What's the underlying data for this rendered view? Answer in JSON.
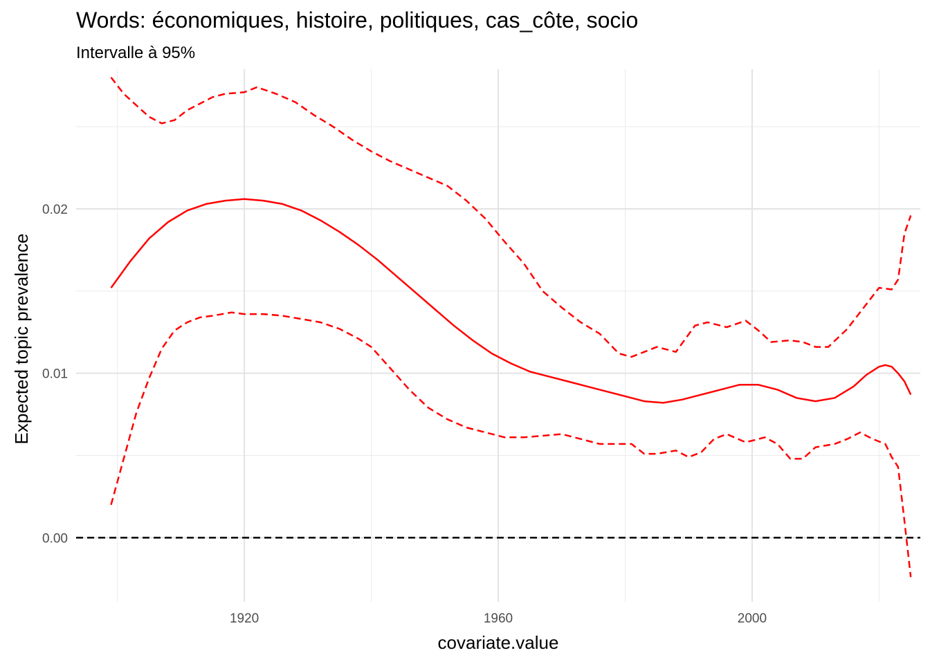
{
  "chart_data": {
    "type": "line",
    "title": "Words: économiques, histoire, politiques, cas_côte, socio",
    "subtitle": "Intervalle à 95%",
    "xlabel": "covariate.value",
    "ylabel": "Expected topic prevalence",
    "x_ticks": [
      "1920",
      "1960",
      "2000"
    ],
    "y_ticks": [
      "0.00",
      "0.01",
      "0.02"
    ],
    "xlim": [
      1893.5,
      2026.5
    ],
    "ylim": [
      -0.0039,
      0.0285
    ],
    "grid": true,
    "legend": "none",
    "reference_line": {
      "y": 0,
      "style": "dashed",
      "color": "#000000"
    },
    "series": [
      {
        "style": "solid",
        "color": "#ff0000",
        "points": [
          [
            1899,
            0.0152
          ],
          [
            1902,
            0.0168
          ],
          [
            1905,
            0.0182
          ],
          [
            1908,
            0.0192
          ],
          [
            1911,
            0.0199
          ],
          [
            1914,
            0.0203
          ],
          [
            1917,
            0.0205
          ],
          [
            1920,
            0.0206
          ],
          [
            1923,
            0.0205
          ],
          [
            1926,
            0.0203
          ],
          [
            1929,
            0.0199
          ],
          [
            1932,
            0.0193
          ],
          [
            1935,
            0.0186
          ],
          [
            1938,
            0.0178
          ],
          [
            1941,
            0.0169
          ],
          [
            1944,
            0.0159
          ],
          [
            1947,
            0.0149
          ],
          [
            1950,
            0.0139
          ],
          [
            1953,
            0.0129
          ],
          [
            1956,
            0.012
          ],
          [
            1959,
            0.0112
          ],
          [
            1962,
            0.0106
          ],
          [
            1965,
            0.0101
          ],
          [
            1968,
            0.0098
          ],
          [
            1971,
            0.0095
          ],
          [
            1974,
            0.0092
          ],
          [
            1977,
            0.0089
          ],
          [
            1980,
            0.0086
          ],
          [
            1983,
            0.0083
          ],
          [
            1986,
            0.0082
          ],
          [
            1989,
            0.0084
          ],
          [
            1992,
            0.0087
          ],
          [
            1995,
            0.009
          ],
          [
            1998,
            0.0093
          ],
          [
            2001,
            0.0093
          ],
          [
            2004,
            0.009
          ],
          [
            2007,
            0.0085
          ],
          [
            2010,
            0.0083
          ],
          [
            2013,
            0.0085
          ],
          [
            2016,
            0.0092
          ],
          [
            2018,
            0.0099
          ],
          [
            2020,
            0.0104
          ],
          [
            2021,
            0.0105
          ],
          [
            2022,
            0.0104
          ],
          [
            2023,
            0.01
          ],
          [
            2024,
            0.0095
          ],
          [
            2025,
            0.0087
          ]
        ]
      },
      {
        "style": "dashed",
        "color": "#ff0000",
        "points": [
          [
            1899,
            0.028
          ],
          [
            1901,
            0.027
          ],
          [
            1903,
            0.0263
          ],
          [
            1905,
            0.0256
          ],
          [
            1907,
            0.0252
          ],
          [
            1909,
            0.0254
          ],
          [
            1911,
            0.026
          ],
          [
            1913,
            0.0264
          ],
          [
            1915,
            0.0268
          ],
          [
            1917,
            0.027
          ],
          [
            1920,
            0.0271
          ],
          [
            1922,
            0.0274
          ],
          [
            1925,
            0.027
          ],
          [
            1928,
            0.0265
          ],
          [
            1931,
            0.0257
          ],
          [
            1934,
            0.025
          ],
          [
            1937,
            0.0242
          ],
          [
            1940,
            0.0235
          ],
          [
            1943,
            0.0229
          ],
          [
            1946,
            0.0224
          ],
          [
            1949,
            0.0219
          ],
          [
            1952,
            0.0214
          ],
          [
            1955,
            0.0205
          ],
          [
            1958,
            0.0194
          ],
          [
            1961,
            0.018
          ],
          [
            1964,
            0.0167
          ],
          [
            1967,
            0.015
          ],
          [
            1970,
            0.014
          ],
          [
            1973,
            0.0131
          ],
          [
            1976,
            0.0124
          ],
          [
            1979,
            0.0112
          ],
          [
            1981,
            0.011
          ],
          [
            1983,
            0.0113
          ],
          [
            1985,
            0.0116
          ],
          [
            1988,
            0.0113
          ],
          [
            1991,
            0.0129
          ],
          [
            1993,
            0.0131
          ],
          [
            1996,
            0.0128
          ],
          [
            1999,
            0.0132
          ],
          [
            2001,
            0.0126
          ],
          [
            2003,
            0.0119
          ],
          [
            2006,
            0.012
          ],
          [
            2008,
            0.0119
          ],
          [
            2010,
            0.0116
          ],
          [
            2012,
            0.0116
          ],
          [
            2015,
            0.0127
          ],
          [
            2018,
            0.0142
          ],
          [
            2020,
            0.0152
          ],
          [
            2022,
            0.0151
          ],
          [
            2023,
            0.0157
          ],
          [
            2024,
            0.0185
          ],
          [
            2025,
            0.0196
          ]
        ]
      },
      {
        "style": "dashed",
        "color": "#ff0000",
        "points": [
          [
            1899,
            0.002
          ],
          [
            1901,
            0.0048
          ],
          [
            1903,
            0.0076
          ],
          [
            1905,
            0.0097
          ],
          [
            1907,
            0.0115
          ],
          [
            1909,
            0.0126
          ],
          [
            1911,
            0.0131
          ],
          [
            1913,
            0.0134
          ],
          [
            1915,
            0.0135
          ],
          [
            1918,
            0.0137
          ],
          [
            1920,
            0.0136
          ],
          [
            1923,
            0.0136
          ],
          [
            1926,
            0.0135
          ],
          [
            1929,
            0.0133
          ],
          [
            1932,
            0.0131
          ],
          [
            1935,
            0.0127
          ],
          [
            1938,
            0.0121
          ],
          [
            1940,
            0.0116
          ],
          [
            1943,
            0.0103
          ],
          [
            1946,
            0.009
          ],
          [
            1949,
            0.0079
          ],
          [
            1952,
            0.0072
          ],
          [
            1955,
            0.0067
          ],
          [
            1958,
            0.0064
          ],
          [
            1961,
            0.0061
          ],
          [
            1964,
            0.0061
          ],
          [
            1967,
            0.0062
          ],
          [
            1970,
            0.0063
          ],
          [
            1973,
            0.006
          ],
          [
            1976,
            0.0057
          ],
          [
            1979,
            0.0057
          ],
          [
            1981,
            0.0057
          ],
          [
            1983,
            0.0051
          ],
          [
            1985,
            0.0051
          ],
          [
            1988,
            0.0053
          ],
          [
            1990,
            0.0049
          ],
          [
            1992,
            0.0052
          ],
          [
            1994,
            0.006
          ],
          [
            1996,
            0.0063
          ],
          [
            1999,
            0.0058
          ],
          [
            2002,
            0.0061
          ],
          [
            2004,
            0.0057
          ],
          [
            2006,
            0.0048
          ],
          [
            2008,
            0.0048
          ],
          [
            2010,
            0.0055
          ],
          [
            2013,
            0.0057
          ],
          [
            2015,
            0.006
          ],
          [
            2017,
            0.0064
          ],
          [
            2019,
            0.006
          ],
          [
            2021,
            0.0057
          ],
          [
            2022,
            0.0049
          ],
          [
            2023,
            0.0043
          ],
          [
            2024,
            0.001
          ],
          [
            2025,
            -0.0024
          ]
        ]
      }
    ]
  }
}
